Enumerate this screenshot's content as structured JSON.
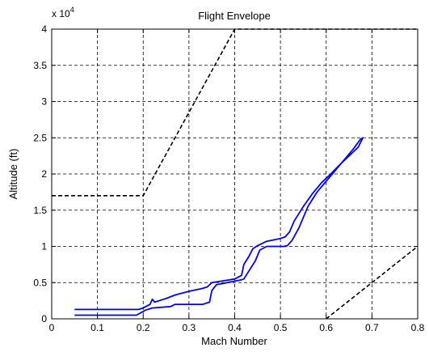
{
  "chart_data": {
    "type": "line",
    "title": "Flight Envelope",
    "xlabel": "Mach Number",
    "ylabel": "Altitude (ft)",
    "xlim": [
      0,
      0.8
    ],
    "ylim": [
      0,
      40000
    ],
    "x_ticks": [
      "0",
      "0.1",
      "0.2",
      "0.3",
      "0.4",
      "0.5",
      "0.6",
      "0.7",
      "0.8"
    ],
    "y_ticks": [
      "0",
      "0.5",
      "1",
      "1.5",
      "2",
      "2.5",
      "3",
      "3.5",
      "4"
    ],
    "y_exponent": {
      "base": "x 10",
      "power": "4"
    },
    "grid": true,
    "series": [
      {
        "color": "#000000",
        "style": "dashed",
        "segments": [
          {
            "x": [
              0.0,
              0.2,
              0.4,
              0.8
            ],
            "y": [
              17000,
              17000,
              40000,
              40000
            ]
          },
          {
            "x": [
              0.6,
              0.8
            ],
            "y": [
              0,
              10000
            ]
          }
        ]
      },
      {
        "color": "#0000ff",
        "style": "solid",
        "x": [
          0.05,
          0.19,
          0.2,
          0.215,
          0.22,
          0.225,
          0.24,
          0.25,
          0.27,
          0.3,
          0.33,
          0.34,
          0.35,
          0.37,
          0.4,
          0.415,
          0.42,
          0.43,
          0.44,
          0.45,
          0.47,
          0.5,
          0.51,
          0.52,
          0.53,
          0.55,
          0.57,
          0.59,
          0.61,
          0.63,
          0.65,
          0.67,
          0.68,
          0.675,
          0.66,
          0.64,
          0.62,
          0.6,
          0.58,
          0.56,
          0.54,
          0.525,
          0.515,
          0.51,
          0.51,
          0.47,
          0.455,
          0.445,
          0.43,
          0.42,
          0.415,
          0.4,
          0.36,
          0.35,
          0.345,
          0.33,
          0.27,
          0.26,
          0.22,
          0.205,
          0.185,
          0.05
        ],
        "y": [
          1300,
          1300,
          1500,
          2000,
          2700,
          2300,
          2600,
          2800,
          3300,
          3800,
          4200,
          4400,
          5000,
          5200,
          5500,
          6000,
          7500,
          8500,
          9700,
          10100,
          10700,
          11100,
          11300,
          12000,
          13500,
          15500,
          17300,
          18800,
          20000,
          21300,
          22500,
          23700,
          25000,
          24800,
          23500,
          22000,
          20500,
          19000,
          17500,
          15500,
          12500,
          10800,
          10100,
          10050,
          10000,
          10000,
          9500,
          8000,
          6500,
          5500,
          5400,
          5200,
          4700,
          3900,
          2300,
          2000,
          2000,
          1700,
          1500,
          1200,
          500,
          500
        ]
      }
    ]
  }
}
